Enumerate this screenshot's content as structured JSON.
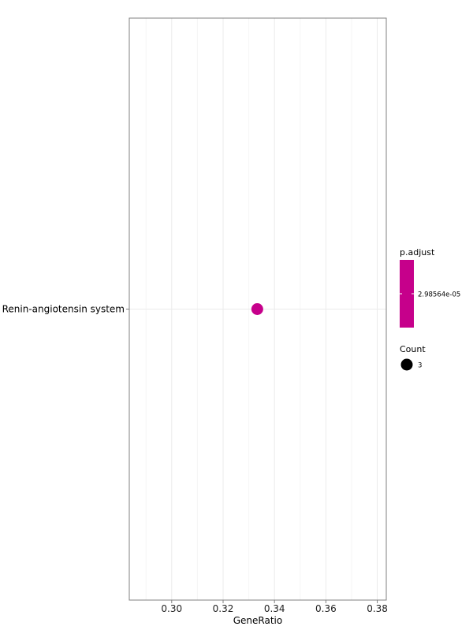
{
  "chart_data": {
    "type": "scatter",
    "xlabel": "GeneRatio",
    "ylabel": "",
    "xlim": [
      0.2835,
      0.3835
    ],
    "x_ticks": [
      0.3,
      0.32,
      0.34,
      0.36,
      0.38
    ],
    "x_tick_labels": [
      "0.30",
      "0.32",
      "0.34",
      "0.36",
      "0.38"
    ],
    "x_minor_ticks": [
      0.29,
      0.31,
      0.33,
      0.35,
      0.37
    ],
    "categories": [
      "Renin-angiotensin system"
    ],
    "points": [
      {
        "term": "Renin-angiotensin system",
        "gene_ratio": 0.3333,
        "count": 3,
        "p_adjust": 2.98564e-05
      }
    ],
    "grid": true,
    "point_color": "#C6008B",
    "legend_position": "right",
    "legend": {
      "color": {
        "title": "p.adjust",
        "label": "2.98564e-05",
        "color": "#C6008B"
      },
      "size": {
        "title": "Count",
        "label": "3",
        "color": "#000000"
      }
    }
  },
  "colors": {
    "panel_border": "#808080",
    "major_grid": "#ebebeb",
    "minor_grid": "#f5f5f5",
    "text": "#000000",
    "tick_text": "#222222"
  }
}
